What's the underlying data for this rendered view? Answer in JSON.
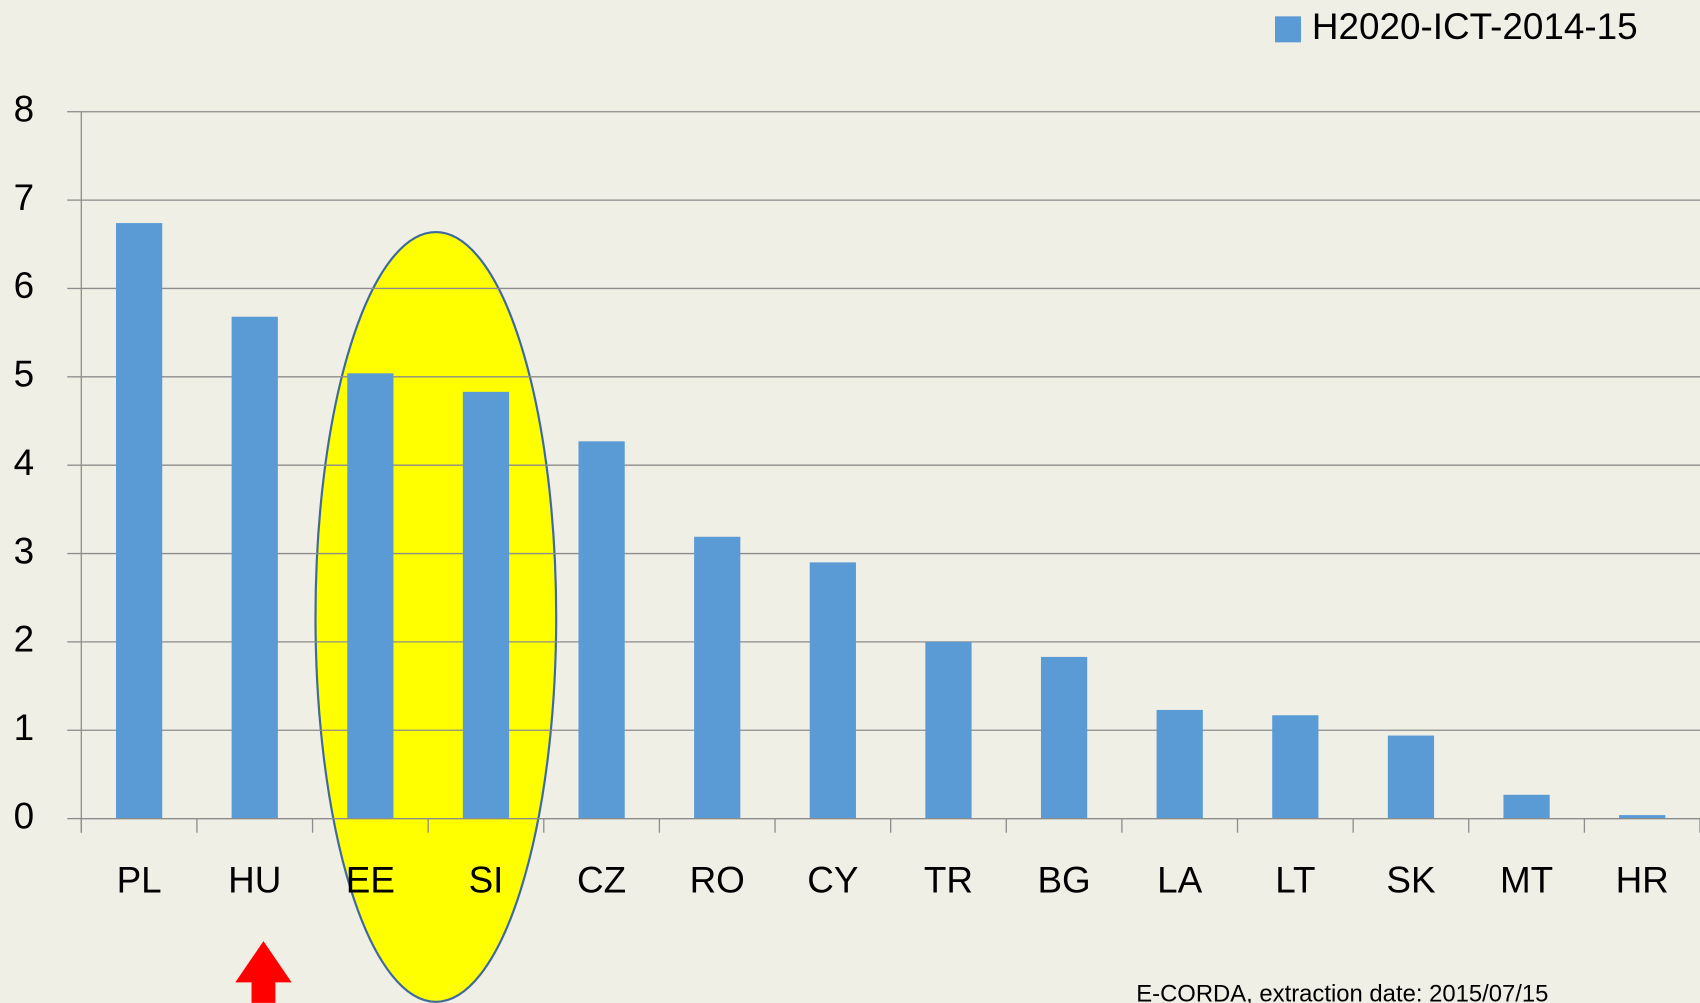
{
  "chart_data": {
    "type": "bar",
    "categories": [
      "PL",
      "HU",
      "EE",
      "SI",
      "CZ",
      "RO",
      "CY",
      "TR",
      "BG",
      "LA",
      "LT",
      "SK",
      "MT",
      "HR"
    ],
    "series": [
      {
        "name": "H2020-ICT-2014-15",
        "color": "#5b9bd5",
        "values": [
          6.74,
          5.68,
          5.04,
          4.83,
          4.27,
          3.19,
          2.9,
          2.0,
          1.83,
          1.23,
          1.17,
          0.94,
          0.27,
          0.04
        ]
      }
    ],
    "ylim": [
      0,
      8
    ],
    "yticks": [
      0,
      1,
      2,
      3,
      4,
      5,
      6,
      7,
      8
    ],
    "grid": true,
    "legend": "top-right",
    "annotations": [
      "E-CORDA, extraction date: 2015/07/15"
    ]
  }
}
